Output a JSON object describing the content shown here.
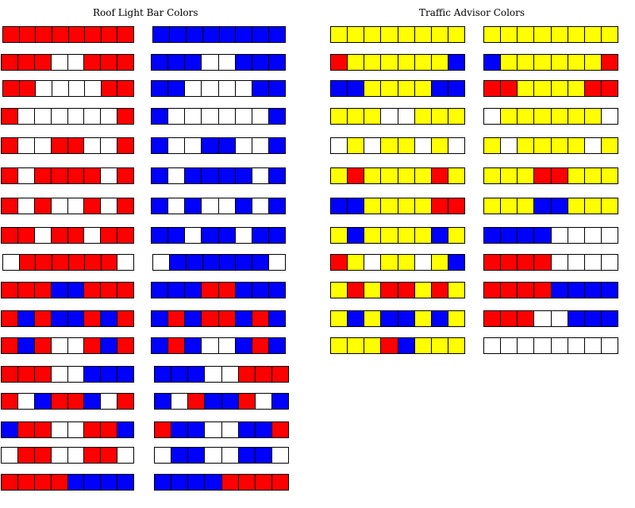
{
  "titles": {
    "roof": "Roof Light Bar Colors",
    "traffic_advisor": "Traffic Advisor Colors"
  },
  "colors": {
    "R": "#ff0000",
    "B": "#0000ff",
    "W": "#ffffff",
    "Y": "#ffff00"
  },
  "roof_light_bar": {
    "left_column": [
      "RRRRRRRR",
      "RRRWWRRR",
      "RRWWWWRR",
      "RWWWWWWR",
      "RWWRRWWR",
      "RWRRRRWR",
      "RWRWWRWR",
      "RRWRRWRR",
      "WRRRRRRW",
      "RRRBBRRR",
      "RBRBBRBR",
      "RBRWWRBR",
      "RRRWWBBB",
      "RWBRRBWR",
      "BRRWWRRB",
      "WRRWWRRW",
      "RRRRBBBB"
    ],
    "right_column": [
      "BBBBBBBB",
      "BBBWWBBB",
      "BBWWWWBB",
      "BWWWWWWB",
      "BWWBBWWB",
      "BWBBBBWB",
      "BWBWWBWB",
      "BBWBBWBB",
      "WBBBBBBW",
      "BBBRRBBB",
      "BRBRRBRB",
      "BRBWWBRB",
      "BBBWWRRR",
      "BWRBBRWB",
      "RBBWWBBR",
      "WBBWWBBW",
      "BBBBRRRR"
    ]
  },
  "traffic_advisor": {
    "left_column": [
      "YYYYYYYY",
      "RYYYYYYB",
      "BBYYYYBB",
      "YYYWWYYY",
      "WYWYYWYW",
      "YRYYYYRY",
      "BBYYYYRR",
      "YBYYYYBY",
      "RYWYYWYB",
      "YRYRRYRY",
      "YBYBBYBY",
      "YYYRBYYY"
    ],
    "right_column": [
      "YYYYYYYY",
      "BYYYYYYR",
      "RRYYYYRR",
      "WYYYYYYW",
      "YWYYYYWY",
      "YYYRRYYY",
      "YYYBBYYY",
      "BBBBWWWW",
      "RRRRWWWW",
      "RRRRBBBB",
      "RRRWWBBB",
      "WWWWWWWW"
    ]
  }
}
